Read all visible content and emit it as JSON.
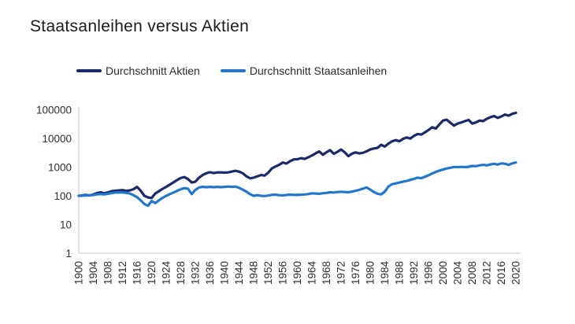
{
  "chart_data": {
    "type": "line",
    "title": "Staatsanleihen versus Aktien",
    "xlabel": "",
    "ylabel": "",
    "x_axis": {
      "range": [
        1900,
        2020
      ],
      "ticks": [
        1900,
        1904,
        1908,
        1912,
        1916,
        1920,
        1924,
        1928,
        1932,
        1936,
        1940,
        1944,
        1948,
        1952,
        1956,
        1960,
        1964,
        1968,
        1972,
        1976,
        1980,
        1984,
        1988,
        1992,
        1996,
        2000,
        2004,
        2008,
        2012,
        2016,
        2020
      ],
      "label_rotation": -90
    },
    "y_axis": {
      "scale": "log",
      "range": [
        1,
        100000
      ],
      "ticks": [
        1,
        10,
        100,
        1000,
        10000,
        100000
      ]
    },
    "grid": false,
    "legend_position": "top",
    "axis_color": "#c9c9c9",
    "series": [
      {
        "name": "Durchschnitt Aktien",
        "color": "#1b2a6b",
        "points": [
          [
            1900,
            100
          ],
          [
            1901,
            104
          ],
          [
            1902,
            107
          ],
          [
            1903,
            103
          ],
          [
            1904,
            112
          ],
          [
            1905,
            125
          ],
          [
            1906,
            132
          ],
          [
            1907,
            122
          ],
          [
            1908,
            132
          ],
          [
            1909,
            145
          ],
          [
            1910,
            150
          ],
          [
            1911,
            155
          ],
          [
            1912,
            158
          ],
          [
            1913,
            150
          ],
          [
            1914,
            155
          ],
          [
            1915,
            170
          ],
          [
            1916,
            205
          ],
          [
            1917,
            150
          ],
          [
            1918,
            100
          ],
          [
            1919,
            88
          ],
          [
            1920,
            84
          ],
          [
            1921,
            120
          ],
          [
            1922,
            145
          ],
          [
            1923,
            175
          ],
          [
            1924,
            205
          ],
          [
            1925,
            245
          ],
          [
            1926,
            295
          ],
          [
            1927,
            355
          ],
          [
            1928,
            420
          ],
          [
            1929,
            450
          ],
          [
            1930,
            380
          ],
          [
            1931,
            290
          ],
          [
            1932,
            310
          ],
          [
            1933,
            430
          ],
          [
            1934,
            530
          ],
          [
            1935,
            610
          ],
          [
            1936,
            665
          ],
          [
            1937,
            620
          ],
          [
            1938,
            650
          ],
          [
            1939,
            655
          ],
          [
            1940,
            645
          ],
          [
            1941,
            655
          ],
          [
            1942,
            700
          ],
          [
            1943,
            745
          ],
          [
            1944,
            700
          ],
          [
            1945,
            610
          ],
          [
            1946,
            480
          ],
          [
            1947,
            405
          ],
          [
            1948,
            430
          ],
          [
            1949,
            475
          ],
          [
            1950,
            530
          ],
          [
            1951,
            505
          ],
          [
            1952,
            640
          ],
          [
            1953,
            900
          ],
          [
            1954,
            1050
          ],
          [
            1955,
            1200
          ],
          [
            1956,
            1450
          ],
          [
            1957,
            1330
          ],
          [
            1958,
            1600
          ],
          [
            1959,
            1850
          ],
          [
            1960,
            1880
          ],
          [
            1961,
            2050
          ],
          [
            1962,
            1930
          ],
          [
            1963,
            2200
          ],
          [
            1964,
            2550
          ],
          [
            1965,
            3000
          ],
          [
            1966,
            3500
          ],
          [
            1967,
            2700
          ],
          [
            1968,
            3300
          ],
          [
            1969,
            3900
          ],
          [
            1970,
            2900
          ],
          [
            1971,
            3400
          ],
          [
            1972,
            4100
          ],
          [
            1973,
            3300
          ],
          [
            1974,
            2400
          ],
          [
            1975,
            2950
          ],
          [
            1976,
            3250
          ],
          [
            1977,
            3000
          ],
          [
            1978,
            3150
          ],
          [
            1979,
            3550
          ],
          [
            1980,
            4100
          ],
          [
            1981,
            4450
          ],
          [
            1982,
            4700
          ],
          [
            1983,
            6000
          ],
          [
            1984,
            5200
          ],
          [
            1985,
            6600
          ],
          [
            1986,
            7900
          ],
          [
            1987,
            8700
          ],
          [
            1988,
            7900
          ],
          [
            1989,
            9600
          ],
          [
            1990,
            10800
          ],
          [
            1991,
            9900
          ],
          [
            1992,
            12200
          ],
          [
            1993,
            14200
          ],
          [
            1994,
            13600
          ],
          [
            1995,
            16200
          ],
          [
            1996,
            19500
          ],
          [
            1997,
            24500
          ],
          [
            1998,
            22000
          ],
          [
            1999,
            31000
          ],
          [
            2000,
            42000
          ],
          [
            2001,
            45000
          ],
          [
            2002,
            35000
          ],
          [
            2003,
            28000
          ],
          [
            2004,
            33000
          ],
          [
            2005,
            36000
          ],
          [
            2006,
            40000
          ],
          [
            2007,
            44000
          ],
          [
            2008,
            33000
          ],
          [
            2009,
            36000
          ],
          [
            2010,
            42000
          ],
          [
            2011,
            40000
          ],
          [
            2012,
            48000
          ],
          [
            2013,
            55000
          ],
          [
            2014,
            60000
          ],
          [
            2015,
            52000
          ],
          [
            2016,
            58000
          ],
          [
            2017,
            68000
          ],
          [
            2018,
            62000
          ],
          [
            2019,
            72000
          ],
          [
            2020,
            78000
          ]
        ]
      },
      {
        "name": "Durchschnitt Staatsanleihen",
        "color": "#2277cd",
        "points": [
          [
            1900,
            100
          ],
          [
            1901,
            101
          ],
          [
            1902,
            103
          ],
          [
            1903,
            104
          ],
          [
            1904,
            107
          ],
          [
            1905,
            112
          ],
          [
            1906,
            115
          ],
          [
            1907,
            112
          ],
          [
            1908,
            118
          ],
          [
            1909,
            125
          ],
          [
            1910,
            130
          ],
          [
            1911,
            132
          ],
          [
            1912,
            130
          ],
          [
            1913,
            126
          ],
          [
            1914,
            120
          ],
          [
            1915,
            105
          ],
          [
            1916,
            90
          ],
          [
            1917,
            70
          ],
          [
            1918,
            52
          ],
          [
            1919,
            45
          ],
          [
            1920,
            66
          ],
          [
            1921,
            56
          ],
          [
            1922,
            70
          ],
          [
            1923,
            85
          ],
          [
            1924,
            100
          ],
          [
            1925,
            115
          ],
          [
            1926,
            130
          ],
          [
            1927,
            150
          ],
          [
            1928,
            170
          ],
          [
            1929,
            185
          ],
          [
            1930,
            175
          ],
          [
            1931,
            115
          ],
          [
            1932,
            160
          ],
          [
            1933,
            195
          ],
          [
            1934,
            205
          ],
          [
            1935,
            200
          ],
          [
            1936,
            205
          ],
          [
            1937,
            200
          ],
          [
            1938,
            205
          ],
          [
            1939,
            200
          ],
          [
            1940,
            205
          ],
          [
            1941,
            210
          ],
          [
            1942,
            205
          ],
          [
            1943,
            210
          ],
          [
            1944,
            190
          ],
          [
            1945,
            165
          ],
          [
            1946,
            140
          ],
          [
            1947,
            115
          ],
          [
            1948,
            100
          ],
          [
            1949,
            105
          ],
          [
            1950,
            100
          ],
          [
            1951,
            98
          ],
          [
            1952,
            102
          ],
          [
            1953,
            108
          ],
          [
            1954,
            110
          ],
          [
            1955,
            105
          ],
          [
            1956,
            103
          ],
          [
            1957,
            107
          ],
          [
            1958,
            110
          ],
          [
            1959,
            108
          ],
          [
            1960,
            107
          ],
          [
            1961,
            109
          ],
          [
            1962,
            111
          ],
          [
            1963,
            115
          ],
          [
            1964,
            122
          ],
          [
            1965,
            120
          ],
          [
            1966,
            118
          ],
          [
            1967,
            123
          ],
          [
            1968,
            126
          ],
          [
            1969,
            133
          ],
          [
            1970,
            130
          ],
          [
            1971,
            135
          ],
          [
            1972,
            138
          ],
          [
            1973,
            135
          ],
          [
            1974,
            133
          ],
          [
            1975,
            140
          ],
          [
            1976,
            150
          ],
          [
            1977,
            160
          ],
          [
            1978,
            178
          ],
          [
            1979,
            195
          ],
          [
            1980,
            165
          ],
          [
            1981,
            135
          ],
          [
            1982,
            118
          ],
          [
            1983,
            112
          ],
          [
            1984,
            140
          ],
          [
            1985,
            210
          ],
          [
            1986,
            255
          ],
          [
            1987,
            270
          ],
          [
            1988,
            290
          ],
          [
            1989,
            310
          ],
          [
            1990,
            330
          ],
          [
            1991,
            360
          ],
          [
            1992,
            390
          ],
          [
            1993,
            430
          ],
          [
            1994,
            410
          ],
          [
            1995,
            460
          ],
          [
            1996,
            520
          ],
          [
            1997,
            600
          ],
          [
            1998,
            680
          ],
          [
            1999,
            760
          ],
          [
            2000,
            820
          ],
          [
            2001,
            900
          ],
          [
            2002,
            950
          ],
          [
            2003,
            1010
          ],
          [
            2004,
            1000
          ],
          [
            2005,
            1020
          ],
          [
            2006,
            1000
          ],
          [
            2007,
            1030
          ],
          [
            2008,
            1100
          ],
          [
            2009,
            1080
          ],
          [
            2010,
            1150
          ],
          [
            2011,
            1200
          ],
          [
            2012,
            1150
          ],
          [
            2013,
            1250
          ],
          [
            2014,
            1300
          ],
          [
            2015,
            1220
          ],
          [
            2016,
            1350
          ],
          [
            2017,
            1300
          ],
          [
            2018,
            1200
          ],
          [
            2019,
            1350
          ],
          [
            2020,
            1450
          ]
        ]
      }
    ]
  }
}
